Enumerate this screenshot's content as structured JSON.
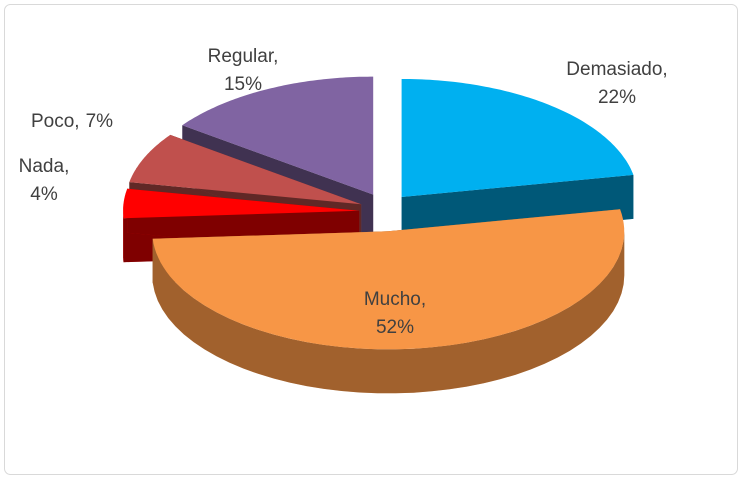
{
  "chart_data": {
    "type": "pie3d",
    "categories": [
      "Demasiado",
      "Mucho",
      "Nada",
      "Poco",
      "Regular"
    ],
    "values": [
      22,
      52,
      4,
      7,
      15
    ],
    "value_labels": [
      "22%",
      "52%",
      "4%",
      "7%",
      "15%"
    ],
    "label_separator": ",",
    "colors": [
      "#00b0f0",
      "#f79646",
      "#ff0000",
      "#c0504d",
      "#8064a2"
    ],
    "exploded": true
  }
}
